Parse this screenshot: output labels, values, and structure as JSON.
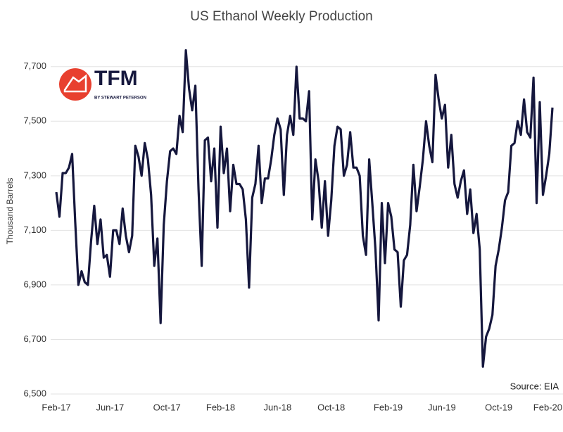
{
  "chart_data": {
    "type": "line",
    "title": "US Ethanol Weekly Production",
    "y_label": "Thousand Barrels",
    "source": "Source: EIA",
    "logo": {
      "text": "TFM",
      "subtext": "BY STEWART PETERSON"
    },
    "categories": [
      "Feb-17",
      null,
      null,
      null,
      null,
      null,
      null,
      null,
      null,
      null,
      null,
      null,
      null,
      null,
      null,
      null,
      null,
      "Jun-17",
      null,
      null,
      null,
      null,
      null,
      null,
      null,
      null,
      null,
      null,
      null,
      null,
      null,
      null,
      null,
      null,
      null,
      "Oct-17",
      null,
      null,
      null,
      null,
      null,
      null,
      null,
      null,
      null,
      null,
      null,
      null,
      null,
      null,
      null,
      null,
      "Feb-18",
      null,
      null,
      null,
      null,
      null,
      null,
      null,
      null,
      null,
      null,
      null,
      null,
      null,
      null,
      null,
      null,
      null,
      "Jun-18",
      null,
      null,
      null,
      null,
      null,
      null,
      null,
      null,
      null,
      null,
      null,
      null,
      null,
      null,
      null,
      null,
      "Oct-18",
      null,
      null,
      null,
      null,
      null,
      null,
      null,
      null,
      null,
      null,
      null,
      null,
      null,
      null,
      null,
      null,
      null,
      "Feb-19",
      null,
      null,
      null,
      null,
      null,
      null,
      null,
      null,
      null,
      null,
      null,
      null,
      null,
      null,
      null,
      null,
      "Jun-19",
      null,
      null,
      null,
      null,
      null,
      null,
      null,
      null,
      null,
      null,
      null,
      null,
      null,
      null,
      null,
      null,
      null,
      "Oct-19",
      null,
      null,
      null,
      null,
      null,
      null,
      null,
      null,
      null,
      null,
      null,
      null,
      null,
      null,
      null,
      null,
      "Feb-20"
    ],
    "series": [
      {
        "name": "US Ethanol Weekly Production",
        "color": "#15173d",
        "values": [
          7240,
          7150,
          7310,
          7310,
          7330,
          7380,
          7130,
          6900,
          6950,
          6910,
          6900,
          7060,
          7190,
          7050,
          7140,
          7000,
          7010,
          6930,
          7100,
          7100,
          7050,
          7180,
          7080,
          7020,
          7080,
          7410,
          7370,
          7300,
          7420,
          7360,
          7230,
          6970,
          7070,
          6760,
          7120,
          7280,
          7390,
          7400,
          7380,
          7520,
          7460,
          7760,
          7620,
          7540,
          7630,
          7250,
          6970,
          7430,
          7440,
          7280,
          7400,
          7110,
          7480,
          7310,
          7400,
          7170,
          7340,
          7270,
          7270,
          7250,
          7140,
          6890,
          7220,
          7270,
          7410,
          7200,
          7290,
          7290,
          7360,
          7450,
          7510,
          7470,
          7230,
          7450,
          7520,
          7450,
          7700,
          7510,
          7510,
          7500,
          7610,
          7140,
          7360,
          7280,
          7110,
          7280,
          7080,
          7210,
          7410,
          7480,
          7470,
          7300,
          7340,
          7460,
          7330,
          7330,
          7300,
          7080,
          7010,
          7360,
          7200,
          7030,
          6770,
          7200,
          6980,
          7200,
          7150,
          7030,
          7020,
          6820,
          6990,
          7010,
          7120,
          7340,
          7170,
          7260,
          7360,
          7500,
          7410,
          7350,
          7670,
          7580,
          7510,
          7560,
          7330,
          7450,
          7270,
          7220,
          7280,
          7320,
          7160,
          7250,
          7090,
          7160,
          7030,
          6600,
          6710,
          6740,
          6790,
          6970,
          7030,
          7110,
          7210,
          7240,
          7410,
          7420,
          7500,
          7450,
          7580,
          7460,
          7440,
          7660,
          7200,
          7570,
          7230,
          7300,
          7380,
          7550
        ]
      }
    ],
    "ylim": [
      6500,
      7800
    ],
    "yticks": [
      {
        "value": 6500,
        "label": "6,500"
      },
      {
        "value": 6700,
        "label": "6,700"
      },
      {
        "value": 6900,
        "label": "6,900"
      },
      {
        "value": 7100,
        "label": "7,100"
      },
      {
        "value": 7300,
        "label": "7,300"
      },
      {
        "value": 7500,
        "label": "7,500"
      },
      {
        "value": 7700,
        "label": "7,700"
      }
    ],
    "grid": true
  }
}
